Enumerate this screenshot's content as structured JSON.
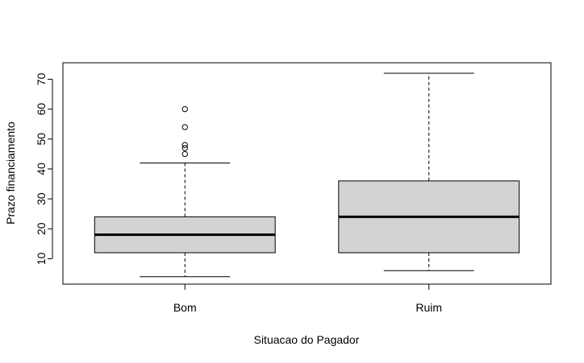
{
  "chart_data": {
    "type": "box",
    "title": "",
    "xlabel": "Situacao do Pagador",
    "ylabel": "Prazo financiamento",
    "ylim": [
      1.5,
      75.5
    ],
    "yticks": [
      10,
      20,
      30,
      40,
      50,
      60,
      70
    ],
    "grid": false,
    "categories": [
      "Bom",
      "Ruim"
    ],
    "boxes": [
      {
        "category": "Bom",
        "whisker_low": 4,
        "q1": 12,
        "median": 18,
        "q3": 24,
        "whisker_high": 42,
        "outliers": [
          45,
          47,
          48,
          54,
          60
        ]
      },
      {
        "category": "Ruim",
        "whisker_low": 6,
        "q1": 12,
        "median": 24,
        "q3": 36,
        "whisker_high": 72,
        "outliers": []
      }
    ],
    "box_fill": "#d3d3d3"
  }
}
